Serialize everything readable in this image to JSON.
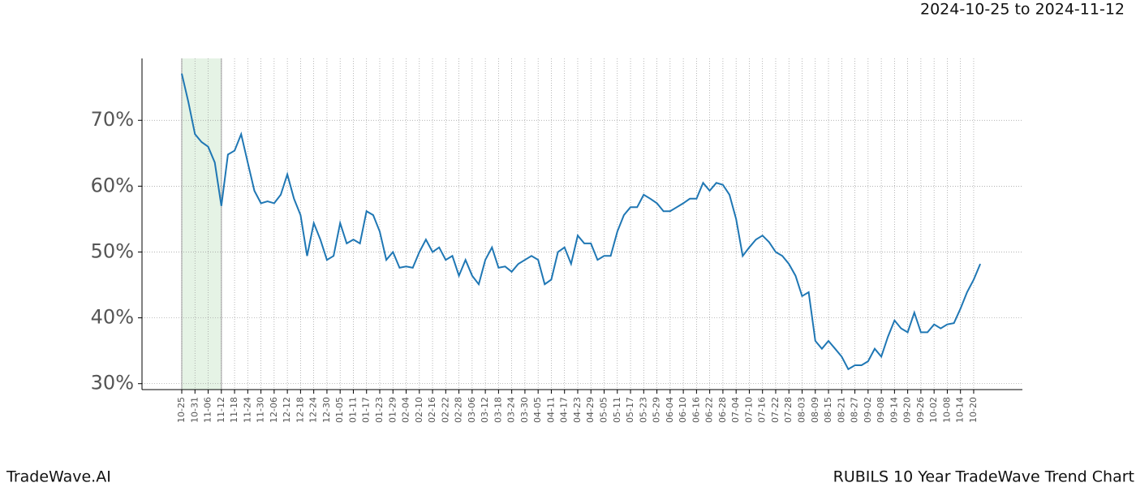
{
  "chart_data": {
    "type": "line",
    "title": "RUBILS 10 Year TradeWave Trend Chart",
    "subtitle": "2024-10-25 to 2024-11-12",
    "brand": "TradeWave.AI",
    "color": "#1f77b4",
    "highlight_span": [
      "10-25",
      "11-12"
    ],
    "highlight_color": "#e5f3e5",
    "grid": true,
    "categories": [
      "10-25",
      null,
      "10-31",
      null,
      "11-06",
      null,
      "11-12",
      null,
      "11-18",
      null,
      "11-24",
      null,
      "11-30",
      null,
      "12-06",
      null,
      "12-12",
      null,
      "12-18",
      null,
      "12-24",
      null,
      "12-30",
      null,
      "01-05",
      null,
      "01-11",
      null,
      "01-17",
      null,
      "01-23",
      null,
      "01-29",
      null,
      "02-04",
      null,
      "02-10",
      null,
      "02-16",
      null,
      "02-22",
      null,
      "02-28",
      null,
      "03-06",
      null,
      "03-12",
      null,
      "03-18",
      null,
      "03-24",
      null,
      "03-30",
      null,
      "04-05",
      null,
      "04-11",
      null,
      "04-17",
      null,
      "04-23",
      null,
      "04-29",
      null,
      "05-05",
      null,
      "05-11",
      null,
      "05-17",
      null,
      "05-23",
      null,
      "05-29",
      null,
      "06-04",
      null,
      "06-10",
      null,
      "06-16",
      null,
      "06-22",
      null,
      "06-28",
      null,
      "07-04",
      null,
      "07-10",
      null,
      "07-16",
      null,
      "07-22",
      null,
      "07-28",
      null,
      "08-03",
      null,
      "08-09",
      null,
      "08-15",
      null,
      "08-21",
      null,
      "08-27",
      null,
      "09-02",
      null,
      "09-08",
      null,
      "09-14",
      null,
      "09-20",
      null,
      "09-26",
      null,
      "10-02",
      null,
      "10-08",
      null,
      "10-14",
      null,
      "10-20",
      null
    ],
    "values": [
      77.1,
      72.8,
      67.9,
      66.7,
      66,
      63.6,
      57,
      64.8,
      65.4,
      67.9,
      63.6,
      59.3,
      57.4,
      57.7,
      57.4,
      58.7,
      61.8,
      58.1,
      55.6,
      49.4,
      54.4,
      51.9,
      48.8,
      49.4,
      54.4,
      51.3,
      51.9,
      51.3,
      56.2,
      55.6,
      53.1,
      48.8,
      50,
      47.6,
      47.8,
      47.6,
      50,
      51.9,
      50,
      50.7,
      48.8,
      49.4,
      46.4,
      48.8,
      46.4,
      45.1,
      48.8,
      50.7,
      47.6,
      47.8,
      47,
      48.2,
      48.8,
      49.4,
      48.8,
      45.1,
      45.8,
      50,
      50.7,
      48.2,
      52.5,
      51.3,
      51.3,
      48.8,
      49.4,
      49.4,
      53.1,
      55.6,
      56.8,
      56.8,
      58.7,
      58.1,
      57.4,
      56.2,
      56.2,
      56.8,
      57.4,
      58.1,
      58.1,
      60.5,
      59.3,
      60.5,
      60.2,
      58.7,
      55,
      49.4,
      50.7,
      51.9,
      52.5,
      51.5,
      50,
      49.4,
      48.2,
      46.4,
      43.3,
      43.9,
      36.5,
      35.3,
      36.5,
      35.3,
      34.1,
      32.2,
      32.8,
      32.8,
      33.4,
      35.3,
      34.1,
      37.1,
      39.6,
      38.4,
      37.8,
      40.8,
      37.8,
      37.8,
      39,
      38.4,
      39,
      39.2,
      41.4,
      43.9,
      45.8,
      48.2
    ],
    "ylim": [
      29.1,
      79.4
    ],
    "yticks": [
      {
        "value": 30,
        "label": "30%"
      },
      {
        "value": 40,
        "label": "40%"
      },
      {
        "value": 50,
        "label": "50%"
      },
      {
        "value": 60,
        "label": "60%"
      },
      {
        "value": 70,
        "label": "70%"
      }
    ]
  }
}
